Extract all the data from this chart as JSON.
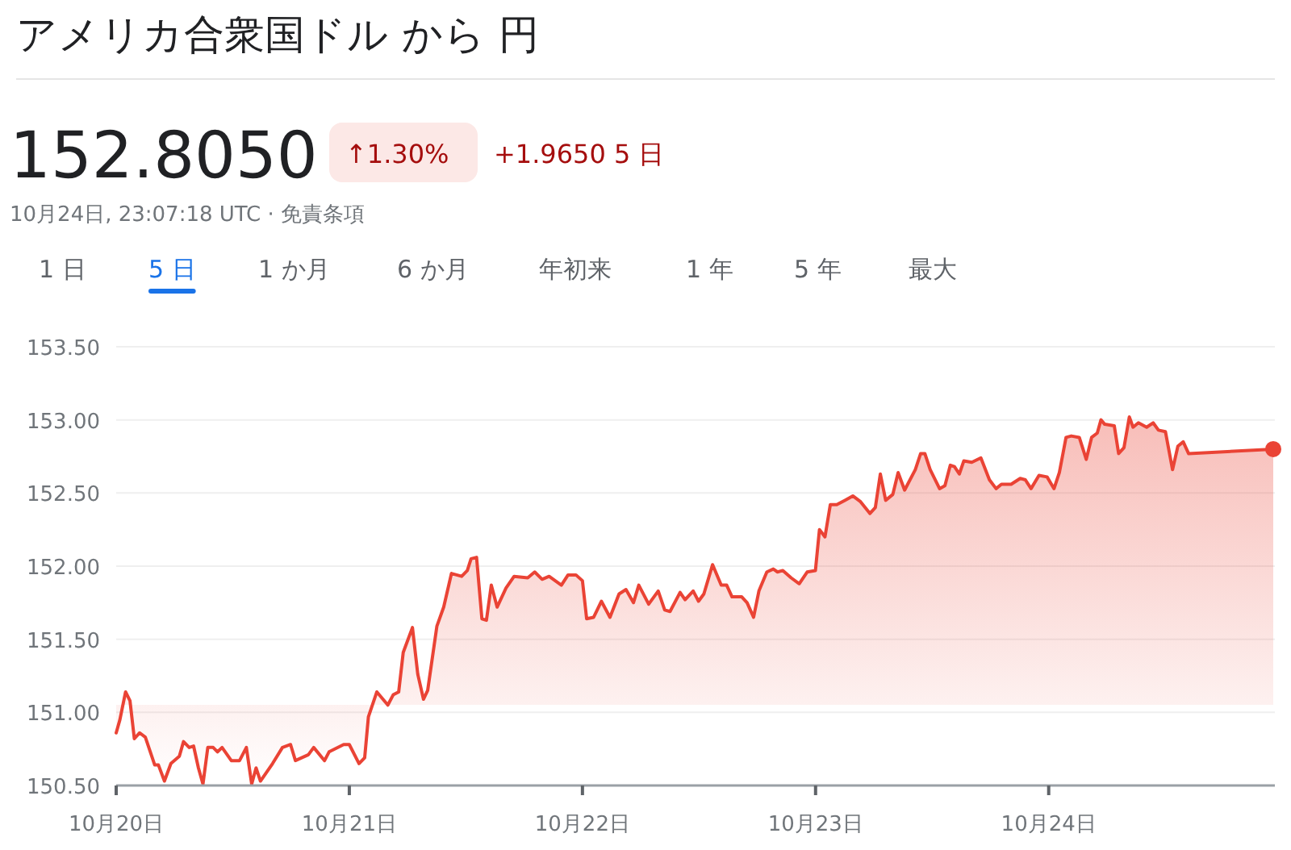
{
  "chart_data": {
    "type": "area",
    "title": "アメリカ合衆国ドル から 円",
    "annotations": [
      "152.8050",
      "↑1.30%",
      "+1.9650 5 日",
      "10月24日, 23:07:18 UTC · 免責条項",
      "1 日",
      "5 日",
      "1 か月",
      "6 か月",
      "年初来",
      "1 年",
      "5 年",
      "最大"
    ],
    "x": [
      "--10-20T00:00",
      "--10-20T00:23",
      "--10-20T00:58",
      "--10-20T01:25",
      "--10-20T01:52",
      "--10-20T02:25",
      "--10-20T03:00",
      "--10-20T03:58",
      "--10-20T04:21",
      "--10-20T04:58",
      "--10-20T05:38",
      "--10-20T06:30",
      "--10-20T06:56",
      "--10-20T07:31",
      "--10-20T07:58",
      "--10-20T08:28",
      "--10-20T08:56",
      "--10-20T09:26",
      "--10-20T09:59",
      "--10-20T10:26",
      "--10-20T10:54",
      "--10-20T11:51",
      "--10-20T12:42",
      "--10-20T13:24",
      "--10-20T13:57",
      "--10-20T14:24",
      "--10-20T14:51",
      "--10-20T16:06",
      "--10-20T17:07",
      "--10-20T17:57",
      "--10-20T18:27",
      "--10-20T19:47",
      "--10-20T20:20",
      "--10-20T21:27",
      "--10-20T21:55",
      "--10-20T23:25",
      "--10-21T00:00",
      "--10-21T01:00",
      "--10-21T01:35",
      "--10-21T01:58",
      "--10-21T02:50",
      "--10-21T03:58",
      "--10-21T04:31",
      "--10-21T05:05",
      "--10-21T05:33",
      "--10-21T06:30",
      "--10-21T07:03",
      "--10-21T07:38",
      "--10-21T08:04",
      "--10-21T09:01",
      "--10-21T09:43",
      "--10-21T10:31",
      "--10-21T11:34",
      "--10-21T12:09",
      "--10-21T12:32",
      "--10-21T13:06",
      "--10-21T13:39",
      "--10-21T14:07",
      "--10-21T14:37",
      "--10-21T15:13",
      "--10-21T16:08",
      "--10-21T16:58",
      "--10-21T18:22",
      "--10-21T19:05",
      "--10-21T19:51",
      "--10-21T20:34",
      "--10-21T21:50",
      "--10-21T22:31",
      "--10-21T23:20",
      "--10-22T00:00",
      "--10-22T00:26",
      "--10-22T01:09",
      "--10-22T01:57",
      "--10-22T02:50",
      "--10-22T03:46",
      "--10-22T04:29",
      "--10-22T05:15",
      "--10-22T05:48",
      "--10-22T06:49",
      "--10-22T07:48",
      "--10-22T08:28",
      "--10-22T09:01",
      "--10-22T10:03",
      "--10-22T10:34",
      "--10-22T11:24",
      "--10-22T11:57",
      "--10-22T12:30",
      "--10-22T13:24",
      "--10-22T14:17",
      "--10-22T14:51",
      "--10-22T15:24",
      "--10-22T16:24",
      "--10-22T16:57",
      "--10-22T17:37",
      "--10-22T18:10",
      "--10-22T18:59",
      "--10-22T19:39",
      "--10-22T20:05",
      "--10-22T20:38",
      "--10-22T21:29",
      "--10-22T22:19",
      "--10-22T23:08",
      "--10-22T23:59",
      "--10-23T00:24",
      "--10-23T00:58",
      "--10-23T01:31",
      "--10-23T02:11",
      "--10-23T03:01",
      "--10-23T03:50",
      "--10-23T04:38",
      "--10-23T05:36",
      "--10-23T06:09",
      "--10-23T06:40",
      "--10-23T07:13",
      "--10-23T07:57",
      "--10-23T08:30",
      "--10-23T09:10",
      "--10-23T10:16",
      "--10-23T10:49",
      "--10-23T11:15",
      "--10-23T11:48",
      "--10-23T12:46",
      "--10-23T13:19",
      "--10-23T13:52",
      "--10-23T14:18",
      "--10-23T14:48",
      "--10-23T15:16",
      "--10-23T16:05",
      "--10-23T17:01",
      "--10-23T17:54",
      "--10-23T18:35",
      "--10-23T19:08",
      "--10-23T20:08",
      "--10-23T21:04",
      "--10-23T21:36",
      "--10-23T22:11",
      "--10-23T23:00",
      "--10-23T23:50",
      "--10-24T00:33",
      "--10-24T01:06",
      "--10-24T01:47",
      "--10-24T02:20",
      "--10-24T03:09",
      "--10-24T03:52",
      "--10-24T04:25",
      "--10-24T05:00",
      "--10-24T05:23",
      "--10-24T05:46",
      "--10-24T06:45",
      "--10-24T07:12",
      "--10-24T07:45",
      "--10-24T08:18",
      "--10-24T08:41",
      "--10-24T09:14",
      "--10-24T10:05",
      "--10-24T10:45",
      "--10-24T11:18",
      "--10-24T12:01",
      "--10-24T12:45",
      "--10-24T13:18",
      "--10-24T13:51",
      "--10-24T14:24",
      "--10-24T23:07"
    ],
    "series": [
      {
        "color": "#ea4335",
        "values": [
          150.86,
          150.95,
          151.14,
          151.08,
          150.82,
          150.86,
          150.83,
          150.64,
          150.64,
          150.53,
          150.65,
          150.7,
          150.8,
          150.76,
          150.77,
          150.62,
          150.51,
          150.76,
          150.76,
          150.73,
          150.76,
          150.67,
          150.67,
          150.76,
          150.51,
          150.62,
          150.53,
          150.65,
          150.76,
          150.78,
          150.67,
          150.71,
          150.76,
          150.67,
          150.73,
          150.78,
          150.78,
          150.65,
          150.69,
          150.97,
          151.14,
          151.05,
          151.12,
          151.14,
          151.41,
          151.58,
          151.26,
          151.09,
          151.15,
          151.59,
          151.72,
          151.95,
          151.93,
          151.97,
          152.05,
          152.06,
          151.64,
          151.63,
          151.87,
          151.72,
          151.85,
          151.93,
          151.92,
          151.96,
          151.91,
          151.93,
          151.87,
          151.94,
          151.94,
          151.9,
          151.64,
          151.65,
          151.76,
          151.65,
          151.81,
          151.84,
          151.75,
          151.87,
          151.74,
          151.83,
          151.7,
          151.69,
          151.82,
          151.77,
          151.83,
          151.76,
          151.81,
          152.01,
          151.87,
          151.87,
          151.79,
          151.79,
          151.75,
          151.65,
          151.83,
          151.96,
          151.98,
          151.96,
          151.97,
          151.92,
          151.88,
          151.96,
          151.97,
          152.25,
          152.2,
          152.42,
          152.42,
          152.45,
          152.48,
          152.44,
          152.36,
          152.4,
          152.63,
          152.45,
          152.49,
          152.64,
          152.52,
          152.66,
          152.77,
          152.77,
          152.66,
          152.53,
          152.55,
          152.69,
          152.68,
          152.63,
          152.72,
          152.71,
          152.74,
          152.59,
          152.53,
          152.56,
          152.56,
          152.6,
          152.59,
          152.53,
          152.62,
          152.61,
          152.53,
          152.64,
          152.88,
          152.89,
          152.88,
          152.73,
          152.88,
          152.91,
          153.0,
          152.97,
          152.96,
          152.77,
          152.81,
          153.02,
          152.95,
          152.98,
          152.95,
          152.98,
          152.93,
          152.92,
          152.66,
          152.82,
          152.85,
          152.77,
          152.8
        ]
      }
    ],
    "xlim": [
      "--10-20T00:00",
      "--10-24T23:17"
    ],
    "xticks": [
      {
        "value": "--10-20",
        "label": "10月20日"
      },
      {
        "value": "--10-21",
        "label": "10月21日"
      },
      {
        "value": "--10-22",
        "label": "10月22日"
      },
      {
        "value": "--10-23",
        "label": "10月23日"
      },
      {
        "value": "--10-24",
        "label": "10月24日"
      }
    ],
    "ylim": [
      150.5,
      153.5
    ],
    "yticks": [
      {
        "value": 150.5,
        "label": "150.50"
      },
      {
        "value": 151,
        "label": "151.00"
      },
      {
        "value": 151.5,
        "label": "151.50"
      },
      {
        "value": 152,
        "label": "152.00"
      },
      {
        "value": 152.5,
        "label": "152.50"
      },
      {
        "value": 153,
        "label": "153.00"
      },
      {
        "value": 153.5,
        "label": "153.50"
      }
    ],
    "grid": "y"
  }
}
